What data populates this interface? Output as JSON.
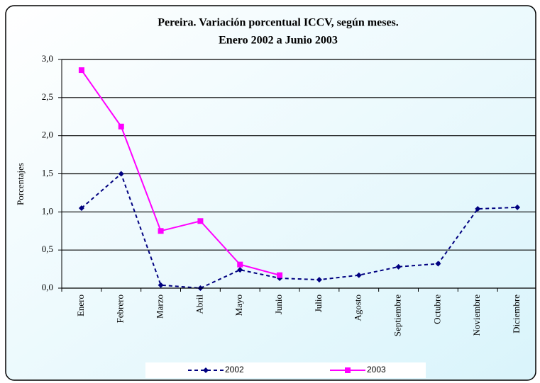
{
  "chart_data": {
    "type": "line",
    "title": "Pereira. Variación porcentual ICCV, según meses.",
    "subtitle": "Enero 2002 a Junio 2003",
    "y_label": "Porcentajes",
    "categories": [
      "Enero",
      "Febrero",
      "Marzo",
      "Abril",
      "Mayo",
      "Junio",
      "Julio",
      "Agosto",
      "Septiembre",
      "Octubre",
      "Noviembre",
      "Diciembre"
    ],
    "series": [
      {
        "name": "2002",
        "color": "#000080",
        "values": [
          1.05,
          1.5,
          0.04,
          0.0,
          0.24,
          0.13,
          0.11,
          0.17,
          0.28,
          0.32,
          1.04,
          1.06
        ]
      },
      {
        "name": "2003",
        "color": "#ff00ff",
        "values": [
          2.86,
          2.12,
          0.75,
          0.88,
          0.31,
          0.17,
          null,
          null,
          null,
          null,
          null,
          null
        ]
      }
    ],
    "ylim": [
      0,
      3
    ],
    "yticks": [
      {
        "value": 0,
        "label": "0,0"
      },
      {
        "value": 0.5,
        "label": "0,5"
      },
      {
        "value": 1,
        "label": "1,0"
      },
      {
        "value": 1.5,
        "label": "1,5"
      },
      {
        "value": 2,
        "label": "2,0"
      },
      {
        "value": 2.5,
        "label": "2,5"
      },
      {
        "value": 3,
        "label": "3,0"
      }
    ],
    "grid": true
  }
}
